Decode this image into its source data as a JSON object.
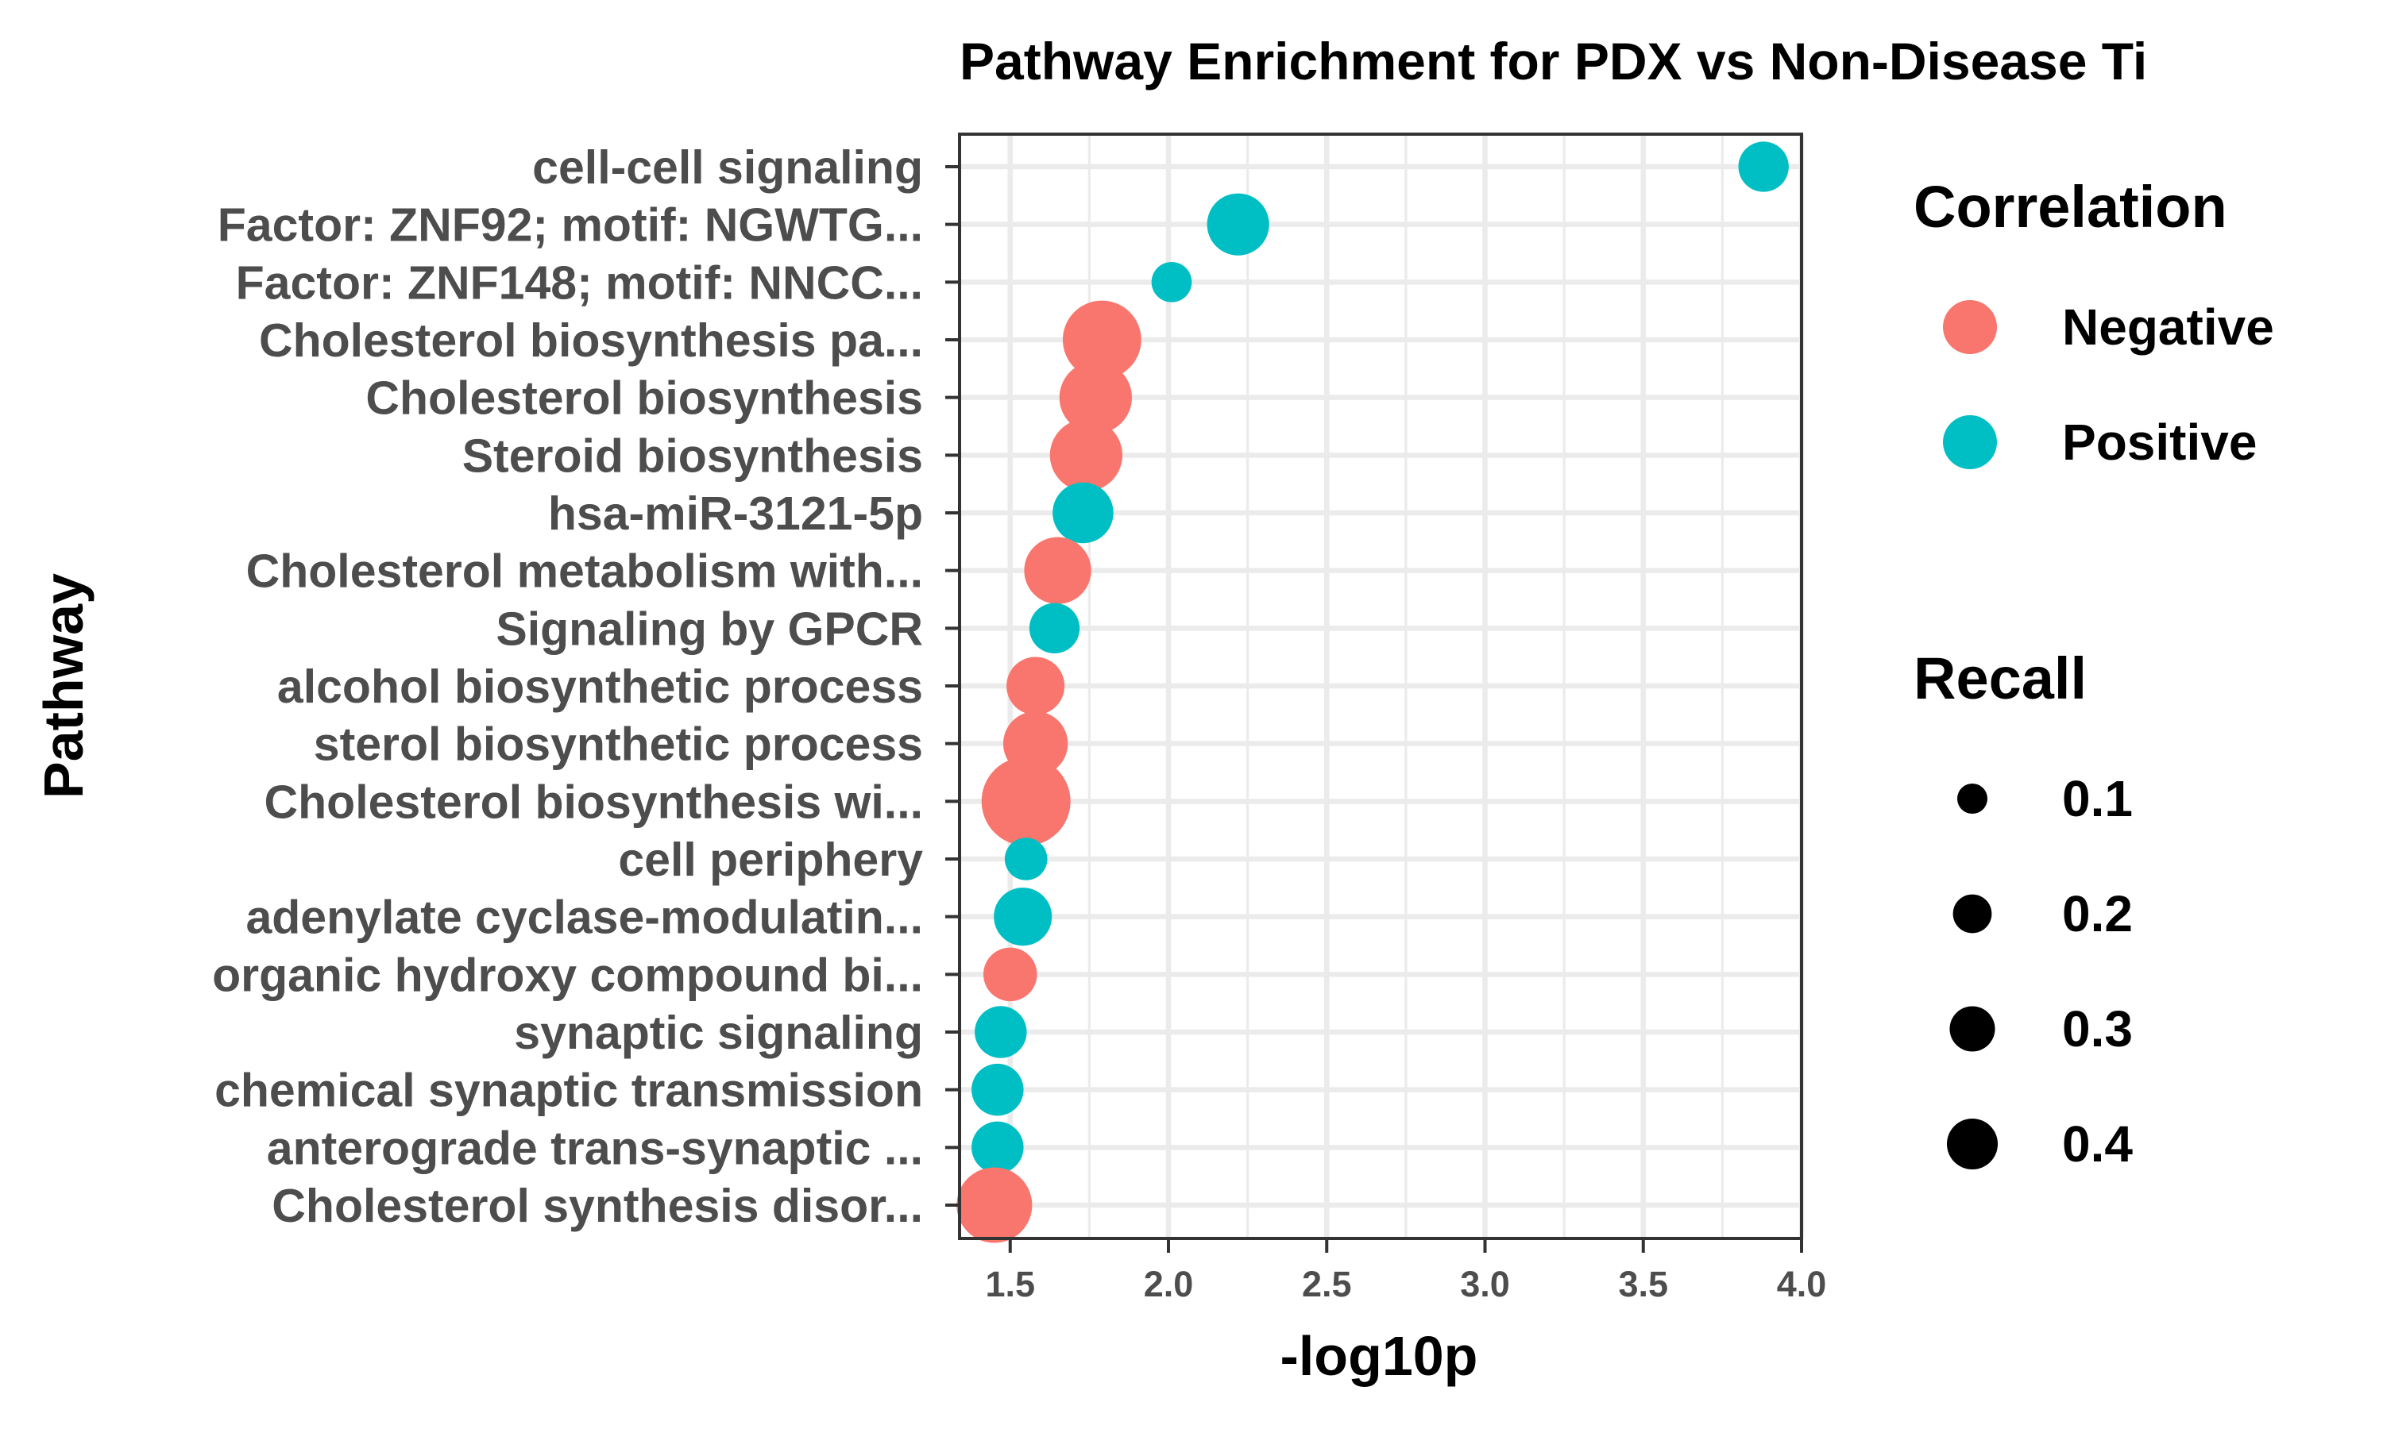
{
  "chart_data": {
    "type": "scatter",
    "title": "Pathway Enrichment for PDX vs Non-Disease Ti",
    "xlabel": "-log10p",
    "ylabel": "Pathway",
    "xlim": [
      1.34,
      4.0
    ],
    "x_ticks": [
      "1.5",
      "2.0",
      "2.5",
      "3.0",
      "3.5",
      "4.0"
    ],
    "x_tick_values": [
      1.5,
      2.0,
      2.5,
      3.0,
      3.5,
      4.0
    ],
    "grid": true,
    "legend_placement": "right",
    "categories": [
      "cell-cell signaling",
      "Factor: ZNF92; motif: NGWTG...",
      "Factor: ZNF148; motif: NNCC...",
      "Cholesterol biosynthesis pa...",
      "Cholesterol biosynthesis",
      "Steroid biosynthesis",
      "hsa-miR-3121-5p",
      "Cholesterol metabolism with...",
      "Signaling by GPCR",
      "alcohol biosynthetic process",
      "sterol biosynthetic process",
      "Cholesterol biosynthesis wi...",
      "cell periphery",
      "adenylate cyclase-modulatin...",
      "organic hydroxy compound bi...",
      "synaptic signaling",
      "chemical synaptic transmission",
      "anterograde trans-synaptic ...",
      "Cholesterol synthesis disor..."
    ],
    "points": [
      {
        "pathway": "cell-cell signaling",
        "x": 3.88,
        "correlation": "Positive",
        "recall": 0.1
      },
      {
        "pathway": "Factor: ZNF92; motif: NGWTG...",
        "x": 2.22,
        "correlation": "Positive",
        "recall": 0.18
      },
      {
        "pathway": "Factor: ZNF148; motif: NNCC...",
        "x": 2.01,
        "correlation": "Positive",
        "recall": 0.05
      },
      {
        "pathway": "Cholesterol biosynthesis pa...",
        "x": 1.79,
        "correlation": "Negative",
        "recall": 0.33
      },
      {
        "pathway": "Cholesterol biosynthesis",
        "x": 1.77,
        "correlation": "Negative",
        "recall": 0.27
      },
      {
        "pathway": "Steroid biosynthesis",
        "x": 1.74,
        "correlation": "Negative",
        "recall": 0.27
      },
      {
        "pathway": "hsa-miR-3121-5p",
        "x": 1.73,
        "correlation": "Positive",
        "recall": 0.17
      },
      {
        "pathway": "Cholesterol metabolism with...",
        "x": 1.65,
        "correlation": "Negative",
        "recall": 0.22
      },
      {
        "pathway": "Signaling by GPCR",
        "x": 1.64,
        "correlation": "Positive",
        "recall": 0.1
      },
      {
        "pathway": "alcohol biosynthetic process",
        "x": 1.58,
        "correlation": "Negative",
        "recall": 0.15
      },
      {
        "pathway": "sterol biosynthetic process",
        "x": 1.58,
        "correlation": "Negative",
        "recall": 0.2
      },
      {
        "pathway": "Cholesterol biosynthesis wi...",
        "x": 1.55,
        "correlation": "Negative",
        "recall": 0.45
      },
      {
        "pathway": "cell periphery",
        "x": 1.55,
        "correlation": "Positive",
        "recall": 0.06
      },
      {
        "pathway": "adenylate cyclase-modulatin...",
        "x": 1.54,
        "correlation": "Positive",
        "recall": 0.15
      },
      {
        "pathway": "organic hydroxy compound bi...",
        "x": 1.5,
        "correlation": "Negative",
        "recall": 0.12
      },
      {
        "pathway": "synaptic signaling",
        "x": 1.47,
        "correlation": "Positive",
        "recall": 0.11
      },
      {
        "pathway": "chemical synaptic transmission",
        "x": 1.46,
        "correlation": "Positive",
        "recall": 0.11
      },
      {
        "pathway": "anterograde trans-synaptic ...",
        "x": 1.46,
        "correlation": "Positive",
        "recall": 0.11
      },
      {
        "pathway": "Cholesterol synthesis disor...",
        "x": 1.45,
        "correlation": "Negative",
        "recall": 0.3
      }
    ],
    "legend": {
      "color": {
        "title": "Correlation",
        "items": [
          {
            "label": "Negative",
            "color": "#F8766D"
          },
          {
            "label": "Positive",
            "color": "#00BFC4"
          }
        ]
      },
      "size": {
        "title": "Recall",
        "items": [
          {
            "label": "0.1",
            "value": 0.1
          },
          {
            "label": "0.2",
            "value": 0.2
          },
          {
            "label": "0.3",
            "value": 0.3
          },
          {
            "label": "0.4",
            "value": 0.4
          }
        ]
      }
    }
  }
}
